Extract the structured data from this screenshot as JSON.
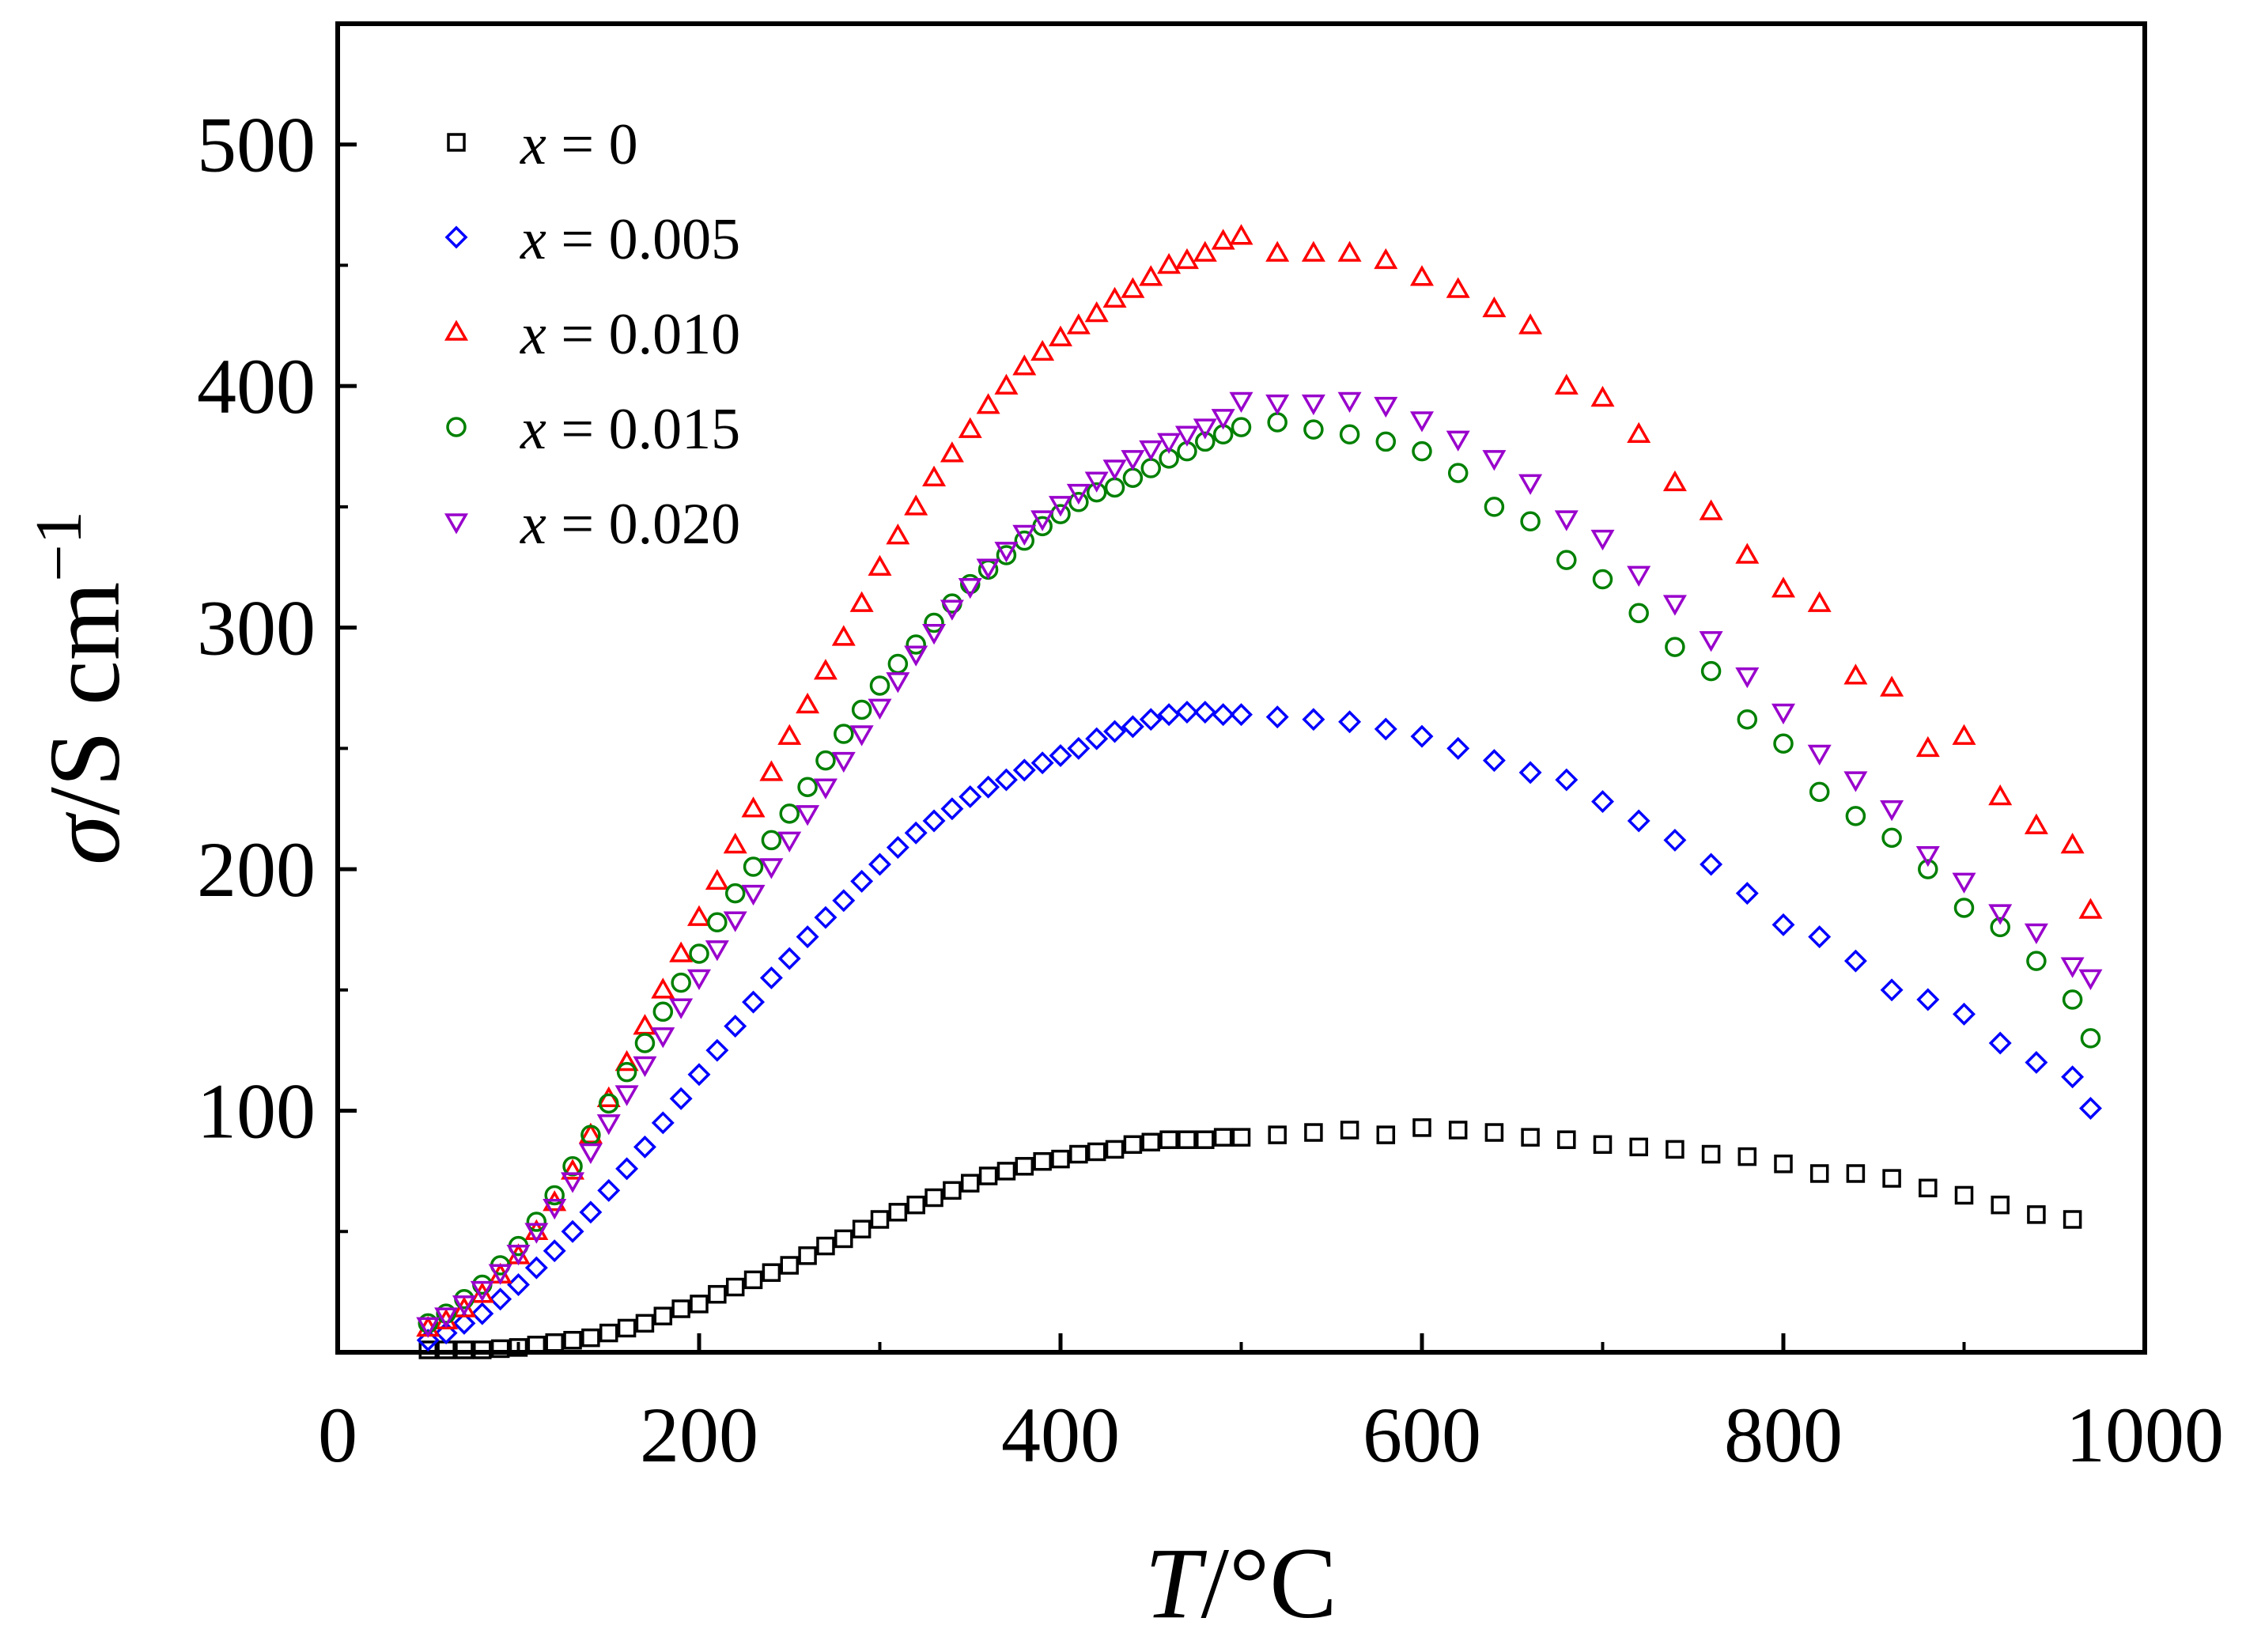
{
  "chart_data": {
    "type": "scatter",
    "title": "",
    "xlabel": "T/°C",
    "ylabel": "σ/S cm⁻¹",
    "xlabel_parts": {
      "var": "T",
      "unit": "/°C"
    },
    "ylabel_parts": {
      "var": "σ",
      "unit": "/S cm",
      "sup": "−1"
    },
    "xlim": [
      0,
      1000
    ],
    "ylim": [
      0,
      550
    ],
    "xticks": [
      0,
      200,
      400,
      600,
      800,
      1000
    ],
    "yticks": [
      100,
      200,
      300,
      400,
      500
    ],
    "xtick_labels": [
      "0",
      "200",
      "400",
      "600",
      "800",
      "1000"
    ],
    "ytick_labels": [
      "100",
      "200",
      "300",
      "400",
      "500"
    ],
    "grid": false,
    "legend_position": "top-left",
    "series": [
      {
        "name": "x = 0",
        "legend_var": "x",
        "legend_rest": " = 0",
        "marker": "square",
        "color": "#000000",
        "x": [
          50,
          60,
          70,
          80,
          90,
          100,
          110,
          120,
          130,
          140,
          150,
          160,
          170,
          180,
          190,
          200,
          210,
          220,
          230,
          240,
          250,
          260,
          270,
          280,
          290,
          300,
          310,
          320,
          330,
          340,
          350,
          360,
          370,
          380,
          390,
          400,
          410,
          420,
          430,
          440,
          450,
          460,
          470,
          480,
          490,
          500,
          520,
          540,
          560,
          580,
          600,
          620,
          640,
          660,
          680,
          700,
          720,
          740,
          760,
          780,
          800,
          820,
          840,
          860,
          880,
          900,
          920,
          940,
          960
        ],
        "y": [
          1,
          1,
          1,
          1,
          1.5,
          2,
          3,
          4,
          5,
          6,
          8,
          10,
          12,
          15,
          18,
          20,
          24,
          27,
          30,
          33,
          36,
          40,
          44,
          47,
          51,
          55,
          58,
          61,
          64,
          67,
          70,
          73,
          75,
          77,
          79,
          80,
          82,
          83,
          84,
          86,
          87,
          88,
          88,
          88,
          89,
          89,
          90,
          91,
          92,
          90,
          93,
          92,
          91,
          89,
          88,
          86,
          85,
          84,
          82,
          81,
          78,
          74,
          74,
          72,
          68,
          65,
          61,
          57,
          55
        ]
      },
      {
        "name": "x = 0.005",
        "legend_var": "x",
        "legend_rest": " = 0.005",
        "marker": "diamond",
        "color": "#0000ff",
        "x": [
          50,
          60,
          70,
          80,
          90,
          100,
          110,
          120,
          130,
          140,
          150,
          160,
          170,
          180,
          190,
          200,
          210,
          220,
          230,
          240,
          250,
          260,
          270,
          280,
          290,
          300,
          310,
          320,
          330,
          340,
          350,
          360,
          370,
          380,
          390,
          400,
          410,
          420,
          430,
          440,
          450,
          460,
          470,
          480,
          490,
          500,
          520,
          540,
          560,
          580,
          600,
          620,
          640,
          660,
          680,
          700,
          720,
          740,
          760,
          780,
          800,
          820,
          840,
          860,
          880,
          900,
          920,
          940,
          960,
          970
        ],
        "y": [
          5,
          8,
          12,
          16,
          22,
          28,
          35,
          42,
          50,
          58,
          67,
          76,
          85,
          95,
          105,
          115,
          125,
          135,
          145,
          155,
          163,
          172,
          180,
          187,
          195,
          202,
          209,
          215,
          220,
          225,
          230,
          234,
          237,
          241,
          244,
          247,
          250,
          254,
          257,
          259,
          262,
          264,
          265,
          265,
          264,
          264,
          263,
          262,
          261,
          258,
          255,
          250,
          245,
          240,
          237,
          228,
          220,
          212,
          202,
          190,
          177,
          172,
          162,
          150,
          146,
          140,
          128,
          120,
          114,
          101
        ]
      },
      {
        "name": "x = 0.010",
        "legend_var": "x",
        "legend_rest": " = 0.010",
        "marker": "triangle-up",
        "color": "#ff0000",
        "x": [
          50,
          60,
          70,
          80,
          90,
          100,
          110,
          120,
          130,
          140,
          150,
          160,
          170,
          180,
          190,
          200,
          210,
          220,
          230,
          240,
          250,
          260,
          270,
          280,
          290,
          300,
          310,
          320,
          330,
          340,
          350,
          360,
          370,
          380,
          390,
          400,
          410,
          420,
          430,
          440,
          450,
          460,
          470,
          480,
          490,
          500,
          520,
          540,
          560,
          580,
          600,
          620,
          640,
          660,
          680,
          700,
          720,
          740,
          760,
          780,
          800,
          820,
          840,
          860,
          880,
          900,
          920,
          940,
          960,
          970
        ],
        "y": [
          10,
          13,
          18,
          24,
          32,
          40,
          50,
          62,
          75,
          90,
          105,
          120,
          135,
          150,
          165,
          180,
          195,
          210,
          225,
          240,
          255,
          268,
          282,
          296,
          310,
          325,
          338,
          350,
          362,
          372,
          382,
          392,
          400,
          408,
          414,
          420,
          425,
          430,
          436,
          440,
          445,
          450,
          452,
          455,
          460,
          462,
          455,
          455,
          455,
          452,
          445,
          440,
          432,
          425,
          400,
          395,
          380,
          360,
          348,
          330,
          316,
          310,
          280,
          275,
          250,
          255,
          230,
          218,
          210,
          183
        ]
      },
      {
        "name": "x = 0.015",
        "legend_var": "x",
        "legend_rest": " = 0.015",
        "marker": "circle",
        "color": "#008000",
        "x": [
          50,
          60,
          70,
          80,
          90,
          100,
          110,
          120,
          130,
          140,
          150,
          160,
          170,
          180,
          190,
          200,
          210,
          220,
          230,
          240,
          250,
          260,
          270,
          280,
          290,
          300,
          310,
          320,
          330,
          340,
          350,
          360,
          370,
          380,
          390,
          400,
          410,
          420,
          430,
          440,
          450,
          460,
          470,
          480,
          490,
          500,
          520,
          540,
          560,
          580,
          600,
          620,
          640,
          660,
          680,
          700,
          720,
          740,
          760,
          780,
          800,
          820,
          840,
          860,
          880,
          900,
          920,
          940,
          960,
          970
        ],
        "y": [
          12,
          16,
          22,
          28,
          36,
          44,
          54,
          65,
          77,
          90,
          103,
          116,
          128,
          141,
          153,
          165,
          178,
          190,
          201,
          212,
          223,
          234,
          245,
          256,
          266,
          276,
          285,
          293,
          302,
          310,
          318,
          324,
          330,
          336,
          342,
          347,
          352,
          356,
          358,
          362,
          366,
          370,
          373,
          377,
          380,
          383,
          385,
          382,
          380,
          377,
          373,
          364,
          350,
          344,
          328,
          320,
          306,
          292,
          282,
          262,
          252,
          232,
          222,
          213,
          200,
          184,
          176,
          162,
          146,
          130
        ]
      },
      {
        "name": "x = 0.020",
        "legend_var": "x",
        "legend_rest": " = 0.020",
        "marker": "triangle-down",
        "color": "#9900cc",
        "x": [
          50,
          60,
          70,
          80,
          90,
          100,
          110,
          120,
          130,
          140,
          150,
          160,
          170,
          180,
          190,
          200,
          210,
          220,
          230,
          240,
          250,
          260,
          270,
          280,
          290,
          300,
          310,
          320,
          330,
          340,
          350,
          360,
          370,
          380,
          390,
          400,
          410,
          420,
          430,
          440,
          450,
          460,
          470,
          480,
          490,
          500,
          520,
          540,
          560,
          580,
          600,
          620,
          640,
          660,
          680,
          700,
          720,
          740,
          760,
          780,
          800,
          820,
          840,
          860,
          880,
          900,
          920,
          940,
          960,
          970
        ],
        "y": [
          11,
          15,
          20,
          26,
          33,
          41,
          50,
          60,
          71,
          83,
          95,
          107,
          119,
          131,
          143,
          155,
          167,
          179,
          190,
          201,
          212,
          223,
          234,
          245,
          256,
          267,
          278,
          289,
          298,
          308,
          317,
          325,
          332,
          339,
          345,
          351,
          356,
          361,
          366,
          370,
          374,
          377,
          380,
          383,
          387,
          394,
          393,
          393,
          394,
          392,
          386,
          378,
          370,
          360,
          345,
          337,
          322,
          310,
          295,
          280,
          265,
          248,
          237,
          225,
          206,
          195,
          182,
          174,
          160,
          155
        ]
      }
    ]
  }
}
